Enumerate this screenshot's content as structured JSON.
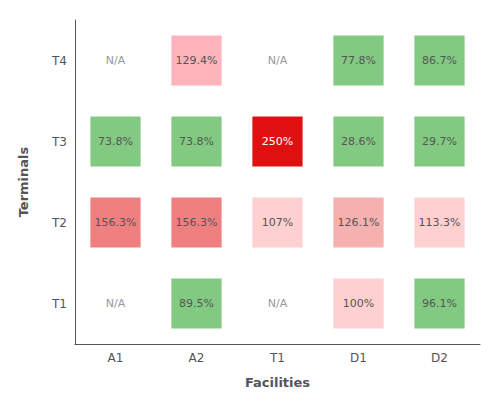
{
  "chart_data": {
    "type": "heatmap",
    "xlabel": "Facilities",
    "ylabel": "Terminals",
    "categories": [
      "A1",
      "A2",
      "T1",
      "D1",
      "D2"
    ],
    "y_categories": [
      "T1",
      "T2",
      "T3",
      "T4"
    ],
    "values": [
      [
        null,
        89.5,
        null,
        100,
        96.1
      ],
      [
        156.3,
        156.3,
        107,
        126.1,
        113.3
      ],
      [
        73.8,
        73.8,
        250,
        28.6,
        29.7
      ],
      [
        null,
        129.4,
        null,
        77.8,
        86.7
      ]
    ],
    "value_labels": [
      [
        "N/A",
        "89.5%",
        "N/A",
        "100%",
        "96.1%"
      ],
      [
        "156.3%",
        "156.3%",
        "107%",
        "126.1%",
        "113.3%"
      ],
      [
        "73.8%",
        "73.8%",
        "250%",
        "28.6%",
        "29.7%"
      ],
      [
        "N/A",
        "129.4%",
        "N/A",
        "77.8%",
        "86.7%"
      ]
    ],
    "colors": [
      [
        null,
        "#82c982",
        null,
        "#ffd0d0",
        "#82c982"
      ],
      [
        "#f08080",
        "#f08080",
        "#ffd0d0",
        "#f5b0b0",
        "#ffd0d0"
      ],
      [
        "#82c982",
        "#82c982",
        "#e01010",
        "#82c982",
        "#82c982"
      ],
      [
        null,
        "#ffb3ba",
        null,
        "#82c982",
        "#82c982"
      ]
    ],
    "grid": false,
    "data_labels": true
  }
}
